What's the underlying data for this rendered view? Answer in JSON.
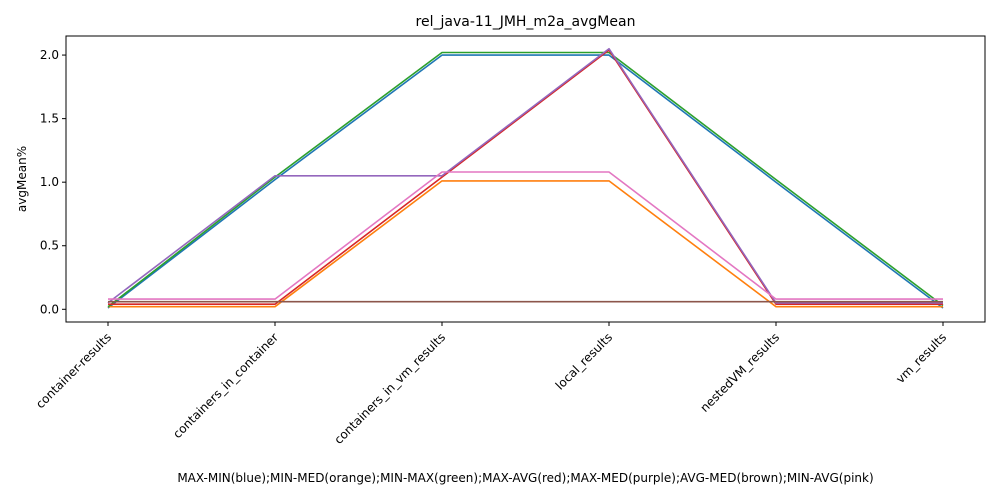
{
  "chart_data": {
    "type": "line",
    "title": "rel_java-11_JMH_m2a_avgMean",
    "xlabel": "MAX-MIN(blue);MIN-MED(orange);MIN-MAX(green);MAX-AVG(red);MAX-MED(purple);AVG-MED(brown);MIN-AVG(pink)",
    "ylabel": "avgMean%",
    "categories": [
      "container-results",
      "containers_in_container",
      "containers_in_vm_results",
      "local_results",
      "nestedVM_results",
      "vm_results"
    ],
    "yticks": [
      0.0,
      0.5,
      1.0,
      1.5,
      2.0
    ],
    "ytick_labels": [
      "0.0",
      "0.5",
      "1.0",
      "1.5",
      "2.0"
    ],
    "ylim": [
      -0.1,
      2.15
    ],
    "grid": false,
    "series": [
      {
        "color": "#1f77b4",
        "values": [
          0.01,
          1.02,
          2.0,
          2.0,
          1.0,
          0.01
        ]
      },
      {
        "color": "#ff7f0e",
        "values": [
          0.02,
          0.02,
          1.01,
          1.01,
          0.02,
          0.02
        ]
      },
      {
        "color": "#2ca02c",
        "values": [
          0.02,
          1.04,
          2.02,
          2.02,
          1.02,
          0.03
        ]
      },
      {
        "color": "#d62728",
        "values": [
          0.04,
          0.04,
          1.04,
          2.04,
          0.04,
          0.04
        ]
      },
      {
        "color": "#9467bd",
        "values": [
          0.05,
          1.05,
          1.05,
          2.05,
          0.05,
          0.05
        ]
      },
      {
        "color": "#8c564b",
        "values": [
          0.06,
          0.06,
          0.06,
          0.06,
          0.06,
          0.06
        ]
      },
      {
        "color": "#e377c2",
        "values": [
          0.08,
          0.08,
          1.08,
          1.08,
          0.08,
          0.08
        ]
      }
    ]
  }
}
